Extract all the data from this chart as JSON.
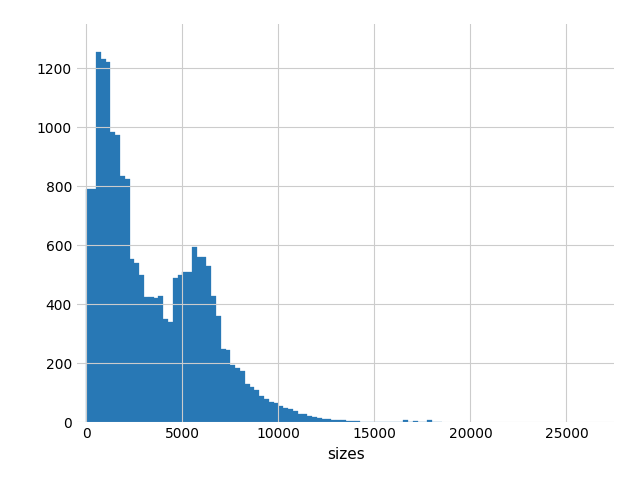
{
  "bar_color": "#2878b5",
  "edge_color": "#2878b5",
  "xlabel": "sizes",
  "ylabel": "",
  "xlim": [
    -500,
    27500
  ],
  "ylim": [
    0,
    1350
  ],
  "grid": true,
  "grid_color": "#cccccc",
  "background_color": "#ffffff",
  "bin_width": 250,
  "bar_heights": [
    790,
    790,
    1255,
    1230,
    1220,
    985,
    975,
    835,
    825,
    555,
    540,
    500,
    425,
    425,
    420,
    430,
    350,
    340,
    490,
    500,
    510,
    510,
    595,
    560,
    560,
    530,
    430,
    360,
    250,
    245,
    195,
    185,
    175,
    130,
    120,
    110,
    90,
    80,
    70,
    65,
    55,
    50,
    45,
    38,
    30,
    28,
    22,
    18,
    15,
    12,
    10,
    9,
    8,
    7,
    6,
    5,
    4,
    3,
    3,
    2,
    2,
    1,
    1,
    1,
    1,
    1,
    8,
    1,
    5,
    1,
    1,
    8,
    3,
    1
  ],
  "tick_fontsize": 10,
  "label_fontsize": 11,
  "figsize": [
    6.4,
    4.8
  ],
  "dpi": 100
}
